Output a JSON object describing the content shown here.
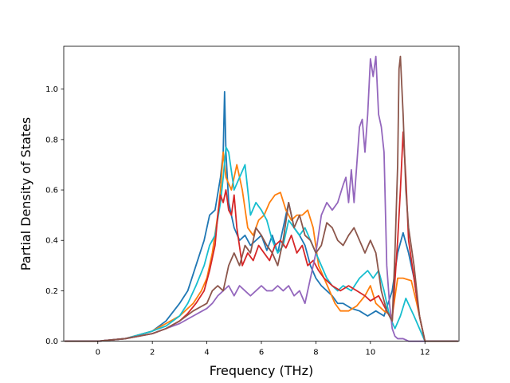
{
  "chart_data": {
    "type": "line",
    "title": "",
    "xlabel": "Frequency (THz)",
    "ylabel": "Partial Density of States",
    "xlim": [
      -1.25,
      13.25
    ],
    "ylim": [
      0.0,
      1.17
    ],
    "xticks": [
      0,
      2,
      4,
      6,
      8,
      10,
      12
    ],
    "yticks": [
      0.0,
      0.2,
      0.4,
      0.6,
      0.8,
      1.0
    ],
    "xtick_labels": [
      "0",
      "2",
      "4",
      "6",
      "8",
      "10",
      "12"
    ],
    "ytick_labels": [
      "0.0",
      "0.2",
      "0.4",
      "0.6",
      "0.8",
      "1.0"
    ],
    "grid": false,
    "legend": "none",
    "series": [
      {
        "name": "series-1",
        "color": "#1f77b4",
        "x": [
          -1.2,
          0,
          1,
          2,
          2.5,
          3,
          3.3,
          3.6,
          3.9,
          4.1,
          4.3,
          4.5,
          4.6,
          4.65,
          4.7,
          4.8,
          5.0,
          5.2,
          5.4,
          5.6,
          5.8,
          6.0,
          6.2,
          6.4,
          6.6,
          6.8,
          7.0,
          7.2,
          7.4,
          7.6,
          7.8,
          8.0,
          8.2,
          8.4,
          8.6,
          8.8,
          9.0,
          9.3,
          9.6,
          9.9,
          10.2,
          10.5,
          10.8,
          11.0,
          11.2,
          11.4,
          11.6,
          11.8,
          12.0,
          12.5,
          13.2
        ],
        "y": [
          0,
          0,
          0.01,
          0.04,
          0.08,
          0.15,
          0.2,
          0.3,
          0.4,
          0.5,
          0.52,
          0.65,
          0.75,
          0.99,
          0.75,
          0.55,
          0.45,
          0.4,
          0.42,
          0.38,
          0.4,
          0.42,
          0.36,
          0.42,
          0.35,
          0.45,
          0.55,
          0.45,
          0.42,
          0.38,
          0.3,
          0.25,
          0.22,
          0.2,
          0.18,
          0.15,
          0.15,
          0.13,
          0.12,
          0.1,
          0.12,
          0.1,
          0.2,
          0.35,
          0.43,
          0.35,
          0.25,
          0.1,
          0,
          0,
          0
        ]
      },
      {
        "name": "series-2",
        "color": "#ff7f0e",
        "x": [
          -1.2,
          0,
          1,
          2,
          2.5,
          3,
          3.5,
          3.8,
          4.0,
          4.2,
          4.4,
          4.5,
          4.6,
          4.7,
          4.9,
          5.1,
          5.3,
          5.5,
          5.7,
          5.9,
          6.1,
          6.3,
          6.5,
          6.7,
          6.9,
          7.1,
          7.3,
          7.5,
          7.7,
          7.9,
          8.1,
          8.3,
          8.5,
          8.7,
          8.9,
          9.2,
          9.5,
          9.8,
          10.0,
          10.2,
          10.5,
          10.8,
          11.0,
          11.2,
          11.5,
          11.7,
          11.9,
          12.0,
          12.5,
          13.2
        ],
        "y": [
          0,
          0,
          0.01,
          0.04,
          0.07,
          0.1,
          0.15,
          0.2,
          0.25,
          0.35,
          0.5,
          0.6,
          0.75,
          0.65,
          0.6,
          0.7,
          0.6,
          0.45,
          0.42,
          0.48,
          0.5,
          0.55,
          0.58,
          0.59,
          0.52,
          0.48,
          0.5,
          0.5,
          0.52,
          0.45,
          0.3,
          0.25,
          0.2,
          0.15,
          0.12,
          0.12,
          0.14,
          0.18,
          0.22,
          0.15,
          0.12,
          0.1,
          0.25,
          0.25,
          0.24,
          0.15,
          0.05,
          0,
          0,
          0
        ]
      },
      {
        "name": "series-3",
        "color": "#17becf",
        "x": [
          -1.2,
          0,
          1,
          2,
          2.5,
          3,
          3.3,
          3.6,
          3.9,
          4.1,
          4.3,
          4.5,
          4.6,
          4.7,
          4.8,
          5.0,
          5.2,
          5.4,
          5.6,
          5.8,
          6.0,
          6.2,
          6.4,
          6.6,
          6.8,
          7.0,
          7.2,
          7.4,
          7.6,
          7.8,
          8.0,
          8.2,
          8.4,
          8.6,
          8.8,
          9.0,
          9.3,
          9.6,
          9.9,
          10.1,
          10.3,
          10.5,
          10.7,
          10.9,
          11.1,
          11.3,
          11.6,
          12.0,
          12.5,
          13.2
        ],
        "y": [
          0,
          0,
          0.01,
          0.04,
          0.06,
          0.1,
          0.15,
          0.22,
          0.3,
          0.38,
          0.42,
          0.55,
          0.65,
          0.77,
          0.75,
          0.6,
          0.65,
          0.7,
          0.5,
          0.55,
          0.52,
          0.48,
          0.4,
          0.35,
          0.38,
          0.48,
          0.45,
          0.42,
          0.45,
          0.4,
          0.35,
          0.3,
          0.25,
          0.22,
          0.2,
          0.22,
          0.2,
          0.25,
          0.28,
          0.25,
          0.28,
          0.2,
          0.1,
          0.05,
          0.1,
          0.17,
          0.1,
          0,
          0,
          0
        ]
      },
      {
        "name": "series-4",
        "color": "#d62728",
        "x": [
          -1.2,
          0,
          1,
          2,
          2.5,
          3,
          3.3,
          3.6,
          3.9,
          4.1,
          4.3,
          4.4,
          4.5,
          4.6,
          4.7,
          4.8,
          4.9,
          5.0,
          5.1,
          5.3,
          5.5,
          5.7,
          5.9,
          6.1,
          6.3,
          6.5,
          6.7,
          6.9,
          7.1,
          7.3,
          7.5,
          7.7,
          7.9,
          8.1,
          8.3,
          8.6,
          8.9,
          9.2,
          9.5,
          9.8,
          10.0,
          10.3,
          10.6,
          10.8,
          11.0,
          11.1,
          11.2,
          11.3,
          11.4,
          11.6,
          11.8,
          12.0,
          12.5,
          13.2
        ],
        "y": [
          0,
          0,
          0.01,
          0.03,
          0.05,
          0.08,
          0.11,
          0.15,
          0.2,
          0.28,
          0.38,
          0.5,
          0.58,
          0.55,
          0.6,
          0.52,
          0.5,
          0.58,
          0.45,
          0.3,
          0.35,
          0.32,
          0.38,
          0.35,
          0.32,
          0.38,
          0.4,
          0.37,
          0.42,
          0.35,
          0.38,
          0.3,
          0.32,
          0.28,
          0.25,
          0.22,
          0.2,
          0.22,
          0.2,
          0.18,
          0.16,
          0.18,
          0.12,
          0.08,
          0.4,
          0.6,
          0.83,
          0.65,
          0.4,
          0.25,
          0.1,
          0,
          0,
          0
        ]
      },
      {
        "name": "series-5",
        "color": "#9467bd",
        "x": [
          -1.2,
          0,
          1,
          2,
          2.5,
          3,
          3.5,
          4.0,
          4.2,
          4.4,
          4.6,
          4.8,
          5.0,
          5.2,
          5.4,
          5.6,
          5.8,
          6.0,
          6.2,
          6.4,
          6.6,
          6.8,
          7.0,
          7.2,
          7.4,
          7.6,
          7.8,
          8.0,
          8.2,
          8.4,
          8.6,
          8.8,
          9.0,
          9.1,
          9.2,
          9.3,
          9.4,
          9.5,
          9.6,
          9.7,
          9.8,
          9.9,
          10.0,
          10.1,
          10.2,
          10.3,
          10.4,
          10.5,
          10.6,
          10.7,
          10.8,
          10.9,
          11.0,
          11.1,
          11.2,
          11.4,
          11.6,
          11.8,
          12.0,
          12.5,
          13.2
        ],
        "y": [
          0,
          0,
          0.01,
          0.03,
          0.05,
          0.07,
          0.1,
          0.13,
          0.15,
          0.18,
          0.2,
          0.22,
          0.18,
          0.22,
          0.2,
          0.18,
          0.2,
          0.22,
          0.2,
          0.2,
          0.22,
          0.2,
          0.22,
          0.18,
          0.2,
          0.15,
          0.25,
          0.35,
          0.5,
          0.55,
          0.52,
          0.55,
          0.62,
          0.65,
          0.55,
          0.68,
          0.55,
          0.7,
          0.85,
          0.88,
          0.75,
          0.9,
          1.12,
          1.05,
          1.13,
          0.9,
          0.85,
          0.75,
          0.3,
          0.15,
          0.05,
          0.02,
          0.01,
          0.01,
          0.01,
          0.0,
          0.0,
          0.0,
          0.0,
          0.0,
          0.0
        ]
      },
      {
        "name": "series-6",
        "color": "#8c564b",
        "x": [
          -1.2,
          0,
          1,
          2,
          2.5,
          3,
          3.5,
          4.0,
          4.2,
          4.4,
          4.6,
          4.8,
          5.0,
          5.2,
          5.4,
          5.6,
          5.8,
          6.0,
          6.2,
          6.4,
          6.6,
          6.8,
          7.0,
          7.2,
          7.4,
          7.6,
          7.8,
          8.0,
          8.2,
          8.4,
          8.6,
          8.8,
          9.0,
          9.2,
          9.4,
          9.6,
          9.8,
          10.0,
          10.2,
          10.4,
          10.6,
          10.8,
          10.9,
          11.0,
          11.05,
          11.1,
          11.2,
          11.3,
          11.4,
          11.6,
          11.8,
          12.0,
          12.5,
          13.2
        ],
        "y": [
          0,
          0,
          0.01,
          0.03,
          0.05,
          0.08,
          0.12,
          0.15,
          0.2,
          0.22,
          0.2,
          0.3,
          0.35,
          0.3,
          0.38,
          0.35,
          0.45,
          0.42,
          0.38,
          0.35,
          0.3,
          0.4,
          0.55,
          0.45,
          0.5,
          0.42,
          0.4,
          0.35,
          0.38,
          0.47,
          0.45,
          0.4,
          0.38,
          0.42,
          0.45,
          0.4,
          0.35,
          0.4,
          0.35,
          0.2,
          0.12,
          0.08,
          0.35,
          0.7,
          1.08,
          1.13,
          0.9,
          0.6,
          0.45,
          0.3,
          0.1,
          0,
          0,
          0
        ]
      }
    ]
  }
}
